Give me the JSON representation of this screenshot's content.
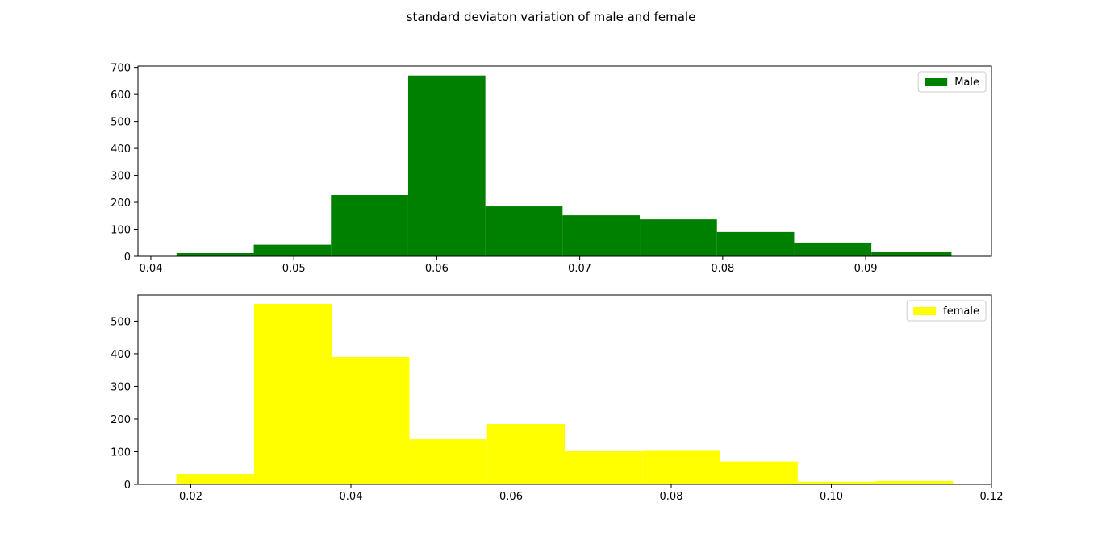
{
  "figure": {
    "title": "standard deviaton variation of male and female"
  },
  "chart_data": [
    {
      "type": "bar",
      "histogram": true,
      "series": [
        {
          "name": "Male",
          "color": "#008000",
          "bin_edges": [
            0.0418,
            0.0472,
            0.0526,
            0.058,
            0.0634,
            0.0688,
            0.0742,
            0.0796,
            0.085,
            0.0904,
            0.096
          ],
          "values": [
            12,
            43,
            227,
            670,
            185,
            152,
            137,
            90,
            51,
            15
          ]
        }
      ],
      "xlim": [
        0.0391,
        0.0988
      ],
      "ylim": [
        0,
        705
      ],
      "xticks": [
        0.04,
        0.05,
        0.06,
        0.07,
        0.08,
        0.09
      ],
      "xtick_labels": [
        "0.04",
        "0.05",
        "0.06",
        "0.07",
        "0.08",
        "0.09"
      ],
      "yticks": [
        0,
        100,
        200,
        300,
        400,
        500,
        600,
        700
      ],
      "ytick_labels": [
        "0",
        "100",
        "200",
        "300",
        "400",
        "500",
        "600",
        "700"
      ],
      "legend_position": "upper-right",
      "grid": false
    },
    {
      "type": "bar",
      "histogram": true,
      "series": [
        {
          "name": "female",
          "color": "#ffff00",
          "bin_edges": [
            0.0182,
            0.0279,
            0.0376,
            0.0473,
            0.057,
            0.0667,
            0.0764,
            0.0861,
            0.0958,
            0.1055,
            0.1152
          ],
          "values": [
            32,
            553,
            390,
            138,
            185,
            102,
            105,
            70,
            8,
            10
          ]
        }
      ],
      "xlim": [
        0.0134,
        0.12
      ],
      "ylim": [
        0,
        580
      ],
      "xticks": [
        0.02,
        0.04,
        0.06,
        0.08,
        0.1,
        0.12
      ],
      "xtick_labels": [
        "0.02",
        "0.04",
        "0.06",
        "0.08",
        "0.10",
        "0.12"
      ],
      "yticks": [
        0,
        100,
        200,
        300,
        400,
        500
      ],
      "ytick_labels": [
        "0",
        "100",
        "200",
        "300",
        "400",
        "500"
      ],
      "legend_position": "upper-right",
      "grid": false
    }
  ]
}
